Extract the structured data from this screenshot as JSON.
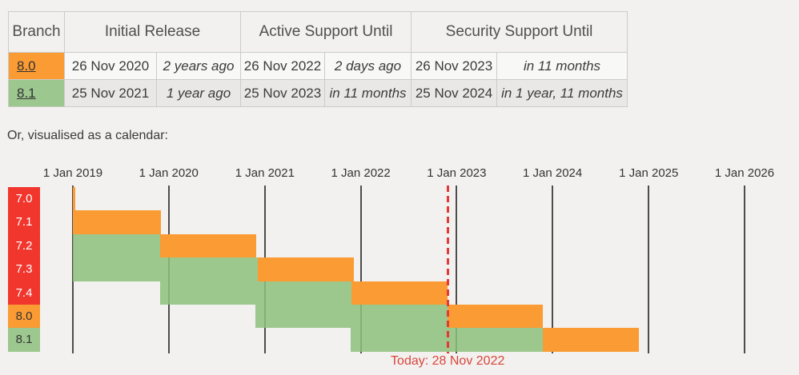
{
  "page": {
    "background_color": "#f2f1ef",
    "intro_text": "Or, visualised as a calendar:"
  },
  "support_table": {
    "columns": [
      "Branch",
      "Initial Release",
      "Active Support Until",
      "Security Support Until"
    ],
    "rows": [
      {
        "branch": "8.0",
        "status": "security",
        "initial_release_date": "26 Nov 2020",
        "initial_release_relative": "2 years ago",
        "active_until_date": "26 Nov 2022",
        "active_until_relative": "2 days ago",
        "security_until_date": "26 Nov 2023",
        "security_until_relative": "in 11 months"
      },
      {
        "branch": "8.1",
        "status": "active",
        "initial_release_date": "25 Nov 2021",
        "initial_release_relative": "1 year ago",
        "active_until_date": "25 Nov 2023",
        "active_until_relative": "in 11 months",
        "security_until_date": "25 Nov 2024",
        "security_until_relative": "in 1 year, 11 months"
      }
    ]
  },
  "chart_data": {
    "type": "gantt",
    "title": "",
    "x_domain": [
      "2019-01-01",
      "2026-01-01"
    ],
    "x_ticks": [
      {
        "date": "2019-01-01",
        "label": "1 Jan 2019"
      },
      {
        "date": "2020-01-01",
        "label": "1 Jan 2020"
      },
      {
        "date": "2021-01-01",
        "label": "1 Jan 2021"
      },
      {
        "date": "2022-01-01",
        "label": "1 Jan 2022"
      },
      {
        "date": "2023-01-01",
        "label": "1 Jan 2023"
      },
      {
        "date": "2024-01-01",
        "label": "1 Jan 2024"
      },
      {
        "date": "2025-01-01",
        "label": "1 Jan 2025"
      },
      {
        "date": "2026-01-01",
        "label": "1 Jan 2026"
      }
    ],
    "branches": [
      {
        "label": "7.0",
        "status": "eol",
        "segments": [
          {
            "phase": "security",
            "start": "2019-01-01",
            "end": "2019-01-10"
          }
        ]
      },
      {
        "label": "7.1",
        "status": "eol",
        "segments": [
          {
            "phase": "security",
            "start": "2019-01-01",
            "end": "2019-12-01"
          }
        ]
      },
      {
        "label": "7.2",
        "status": "eol",
        "segments": [
          {
            "phase": "active",
            "start": "2019-01-01",
            "end": "2019-11-30"
          },
          {
            "phase": "security",
            "start": "2019-11-30",
            "end": "2020-11-30"
          }
        ]
      },
      {
        "label": "7.3",
        "status": "eol",
        "segments": [
          {
            "phase": "active",
            "start": "2019-01-01",
            "end": "2020-12-06"
          },
          {
            "phase": "security",
            "start": "2020-12-06",
            "end": "2021-12-06"
          }
        ]
      },
      {
        "label": "7.4",
        "status": "eol",
        "segments": [
          {
            "phase": "active",
            "start": "2019-11-28",
            "end": "2021-11-28"
          },
          {
            "phase": "security",
            "start": "2021-11-28",
            "end": "2022-11-28"
          }
        ]
      },
      {
        "label": "8.0",
        "status": "security",
        "segments": [
          {
            "phase": "active",
            "start": "2020-11-26",
            "end": "2022-11-26"
          },
          {
            "phase": "security",
            "start": "2022-11-26",
            "end": "2023-11-26"
          }
        ]
      },
      {
        "label": "8.1",
        "status": "active",
        "segments": [
          {
            "phase": "active",
            "start": "2021-11-25",
            "end": "2023-11-25"
          },
          {
            "phase": "security",
            "start": "2023-11-25",
            "end": "2024-11-25"
          }
        ]
      }
    ],
    "today": {
      "date": "2022-11-28",
      "label": "Today: 28 Nov 2022"
    },
    "status_colors": {
      "active": "#9cc78e",
      "security": "#fb9b33",
      "eol": "#f1362e"
    },
    "today_line_color": "#e53935",
    "today_label_color": "#d9453c",
    "gridline_color": "#4d4d4d",
    "legend_position": "left-branch-column",
    "grid": true
  }
}
